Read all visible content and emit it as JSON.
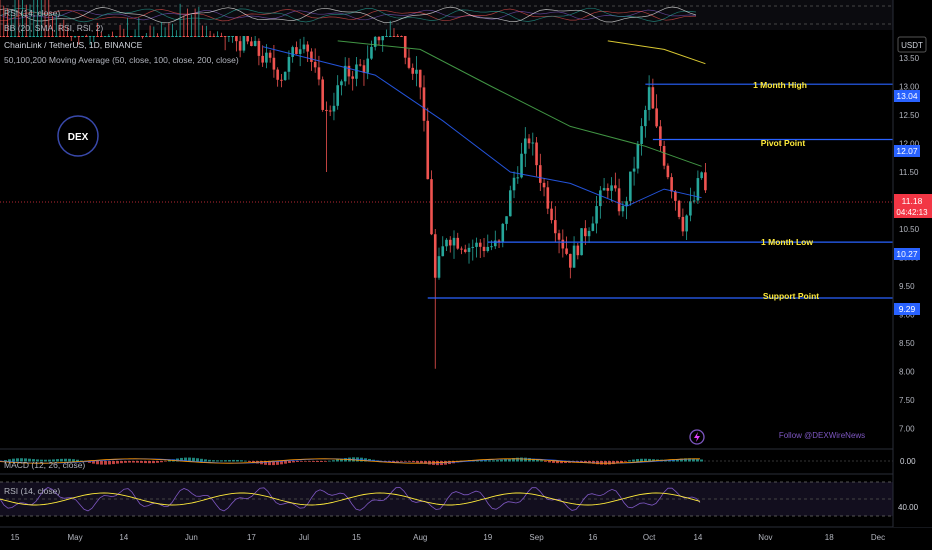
{
  "top_rsi_label": "RSI (14, close)",
  "top_bb_label": "BB (20, SMA, RSI, RSI, 2)",
  "symbol_title": "ChainLink / TetherUS, 1D, BINANCE",
  "ma_label": "50,100,200 Moving Average (50, close, 100, close, 200, close)",
  "logo_text": "DEX",
  "currency": "USDT",
  "annotations": {
    "month_high": "1 Month High",
    "pivot": "Pivot Point",
    "month_low": "1 Month Low",
    "support": "Support Point"
  },
  "level_values": {
    "month_high": "13.04",
    "pivot": "12.07",
    "month_low": "10.27",
    "support": "9.29"
  },
  "current_price": "11.18",
  "countdown": "04:42:13",
  "follow_text": "Follow @DEXWireNews",
  "macd_label": "MACD (12, 26, close)",
  "macd_scale": "0.00",
  "rsi_label": "RSI (14, close)",
  "rsi_scale": "40.00",
  "price_ticks": [
    "13.50",
    "13.00",
    "12.50",
    "12.00",
    "11.50",
    "11.00",
    "10.50",
    "10.00",
    "9.50",
    "9.00",
    "8.50",
    "8.00",
    "7.50",
    "7.00"
  ],
  "x_ticks": [
    "15",
    "May",
    "14",
    "Jun",
    "17",
    "Jul",
    "15",
    "Aug",
    "19",
    "Sep",
    "16",
    "Oct",
    "14",
    "Nov",
    "18",
    "Dec"
  ],
  "colors": {
    "up": "#26a69a",
    "down": "#ef5350",
    "level": "#2962ff",
    "annotation": "#ffeb3b",
    "ma50": "#2962ff",
    "ma100": "#4caf50",
    "ma200": "#ffeb3b",
    "price": "#f23645",
    "follow": "#7e57c2"
  },
  "chart_data": {
    "type": "candlestick",
    "xlim_dates": [
      "2024-04-11",
      "2024-12-05"
    ],
    "ylim": [
      6.8,
      13.85
    ],
    "candle_start": "2024-04-11",
    "candles_ohlc": [],
    "levels": [
      {
        "name": "1 Month High",
        "value": 13.04
      },
      {
        "name": "Pivot Point",
        "value": 12.07
      },
      {
        "name": "1 Month Low",
        "value": 10.27
      },
      {
        "name": "Support Point",
        "value": 9.29
      }
    ],
    "last_price": 11.18,
    "ma_path": {
      "ma50": [
        [
          "2024-06-20",
          13.7
        ],
        [
          "2024-07-20",
          13.2
        ],
        [
          "2024-08-07",
          12.4
        ],
        [
          "2024-08-25",
          11.5
        ],
        [
          "2024-09-10",
          11.3
        ],
        [
          "2024-09-25",
          10.9
        ],
        [
          "2024-10-05",
          11.2
        ],
        [
          "2024-10-15",
          11.05
        ]
      ],
      "ma100": [
        [
          "2024-07-10",
          13.8
        ],
        [
          "2024-08-01",
          13.65
        ],
        [
          "2024-08-20",
          13.0
        ],
        [
          "2024-09-10",
          12.3
        ],
        [
          "2024-09-30",
          11.95
        ],
        [
          "2024-10-15",
          11.6
        ]
      ],
      "ma200": [
        [
          "2024-09-20",
          13.8
        ],
        [
          "2024-10-05",
          13.65
        ],
        [
          "2024-10-16",
          13.4
        ]
      ]
    }
  }
}
